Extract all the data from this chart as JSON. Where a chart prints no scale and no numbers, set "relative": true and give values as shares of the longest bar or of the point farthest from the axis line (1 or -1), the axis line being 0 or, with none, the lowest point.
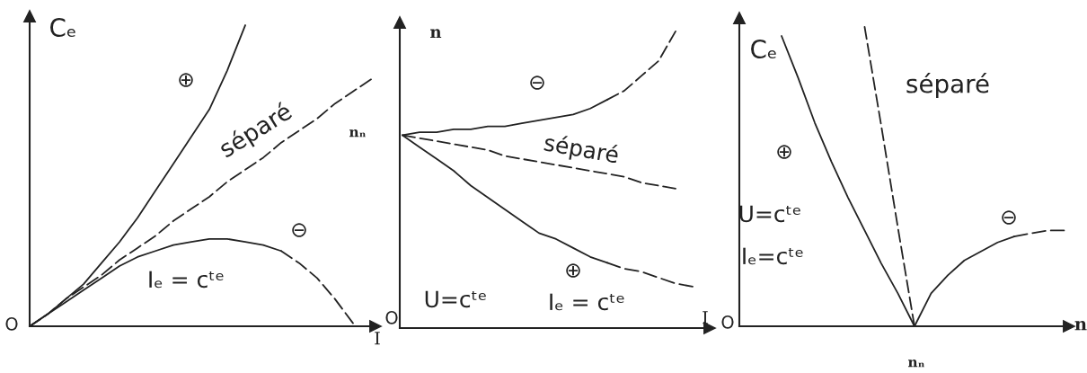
{
  "chart_data": [
    {
      "type": "line",
      "relative": true,
      "xlabel": "I",
      "ylabel": "Cₑ",
      "categories": [
        null,
        null,
        null,
        null,
        null,
        null,
        null,
        null,
        null,
        null,
        null,
        null,
        null,
        null,
        null,
        null,
        null,
        null,
        null,
        null
      ],
      "series": [
        {
          "name": "⊕",
          "color": "#222222",
          "line_style": "solid",
          "values": [
            0,
            0.04,
            0.09,
            0.14,
            0.21,
            0.28,
            0.36,
            0.45,
            0.54,
            0.63,
            0.72,
            0.85,
            1.0,
            null,
            null,
            null,
            null,
            null,
            null,
            null
          ]
        },
        {
          "name": "séparé",
          "color": "#222222",
          "line_style": "dashed",
          "values": [
            0,
            0.04,
            0.09,
            0.13,
            0.17,
            0.22,
            0.26,
            0.3,
            0.35,
            0.39,
            0.43,
            0.48,
            0.52,
            0.56,
            0.61,
            0.65,
            0.69,
            0.74,
            0.78,
            0.82
          ]
        },
        {
          "name": "⊖",
          "color": "#222222",
          "line_style": "solid",
          "values": [
            0,
            0.04,
            0.08,
            0.12,
            0.16,
            0.2,
            0.23,
            0.25,
            0.27,
            0.28,
            0.29,
            0.29,
            0.28,
            0.27,
            0.25,
            null,
            null,
            null,
            null,
            null
          ]
        },
        {
          "color": "#222222",
          "line_style": "dashed",
          "values": [
            null,
            null,
            null,
            null,
            null,
            null,
            null,
            null,
            null,
            null,
            null,
            null,
            null,
            null,
            0.25,
            0.21,
            0.16,
            0.09,
            0.01,
            null
          ]
        }
      ],
      "annotations": [
        "Iₑ = cᵗᵉ",
        "O"
      ]
    },
    {
      "type": "line",
      "relative": true,
      "xlabel": "I",
      "ylabel": "n",
      "categories": [
        null,
        null,
        null,
        null,
        null,
        null,
        null,
        null,
        null,
        null,
        null,
        null,
        null,
        null,
        null,
        null,
        null,
        null
      ],
      "series": [
        {
          "name": "⊖",
          "color": "#222222",
          "line_style": "solid",
          "values": [
            0.65,
            0.66,
            0.66,
            0.67,
            0.67,
            0.68,
            0.68,
            0.69,
            0.7,
            0.71,
            0.72,
            0.74,
            0.77,
            null,
            null,
            null,
            null,
            null
          ]
        },
        {
          "color": "#222222",
          "line_style": "dashed",
          "values": [
            null,
            null,
            null,
            null,
            null,
            null,
            null,
            null,
            null,
            null,
            null,
            null,
            0.77,
            0.8,
            0.85,
            0.9,
            1.0,
            null
          ]
        },
        {
          "name": "séparé",
          "color": "#222222",
          "line_style": "dashed",
          "values": [
            0.65,
            0.64,
            0.63,
            0.62,
            0.61,
            0.6,
            0.58,
            0.57,
            0.56,
            0.55,
            0.54,
            0.53,
            0.52,
            0.51,
            0.49,
            0.48,
            0.47,
            null
          ]
        },
        {
          "name": "⊕",
          "color": "#222222",
          "line_style": "solid",
          "values": [
            0.65,
            0.61,
            0.57,
            0.53,
            0.48,
            0.44,
            0.4,
            0.36,
            0.32,
            0.3,
            0.27,
            0.24,
            0.22,
            null,
            null,
            null,
            null,
            null
          ]
        },
        {
          "color": "#222222",
          "line_style": "dashed",
          "values": [
            null,
            null,
            null,
            null,
            null,
            null,
            null,
            null,
            null,
            null,
            null,
            null,
            0.22,
            0.2,
            0.19,
            0.17,
            0.15,
            0.14
          ]
        }
      ],
      "annotations": [
        "U=cᵗᵉ",
        "Iₑ = cᵗᵉ",
        "O",
        "nₙ"
      ]
    },
    {
      "type": "line",
      "relative": true,
      "xlabel": "n",
      "ylabel": "Cₑ",
      "categories": [
        null,
        null,
        null,
        null,
        null,
        null,
        null,
        null,
        null,
        null,
        null,
        null,
        null,
        null,
        null,
        null,
        null,
        null
      ],
      "series": [
        {
          "name": "⊕",
          "color": "#222222",
          "line_style": "solid",
          "values": [
            0.97,
            0.83,
            0.68,
            0.55,
            0.43,
            0.32,
            0.21,
            0.11,
            0,
            null,
            null,
            null,
            null,
            null,
            null,
            null,
            null,
            null
          ]
        },
        {
          "name": "séparé",
          "color": "#222222",
          "line_style": "dashed",
          "values": [
            null,
            null,
            null,
            null,
            null,
            1.0,
            0.67,
            0.33,
            0,
            null,
            null,
            null,
            null,
            null,
            null,
            null,
            null,
            null
          ]
        },
        {
          "name": "⊖",
          "color": "#222222",
          "line_style": "solid",
          "values": [
            null,
            null,
            null,
            null,
            null,
            null,
            null,
            null,
            0,
            0.11,
            0.17,
            0.22,
            0.25,
            0.28,
            0.3,
            null,
            null,
            null
          ]
        },
        {
          "color": "#222222",
          "line_style": "dashed",
          "values": [
            null,
            null,
            null,
            null,
            null,
            null,
            null,
            null,
            null,
            null,
            null,
            null,
            null,
            null,
            0.3,
            0.31,
            0.32,
            0.32
          ]
        }
      ],
      "annotations": [
        "U=cᵗᵉ",
        "Iₑ=cᵗᵉ",
        "O",
        "nₙ"
      ]
    }
  ]
}
